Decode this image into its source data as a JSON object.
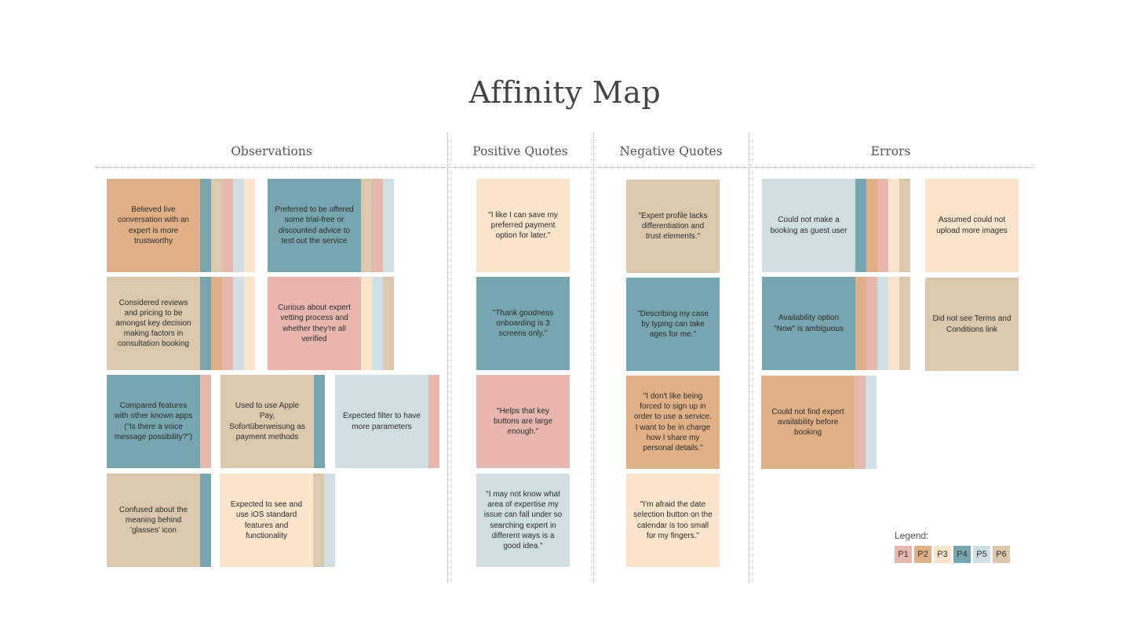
{
  "title": "Affinity Map",
  "colors": {
    "P1": "#e8b7ae",
    "P2": "#e0b188",
    "P3": "#fbe5cc",
    "P4": "#77a5b0",
    "P5": "#d0dfe4",
    "P6": "#dcc9ad"
  },
  "columns": [
    "Observations",
    "Positive Quotes",
    "Negative Quotes",
    "Errors"
  ],
  "notes": [
    {
      "text": "Believed live conversation with an expert is more trustworthy",
      "color": "P2",
      "strips": [
        "P4",
        "P6",
        "P1",
        "P5",
        "P3"
      ]
    },
    {
      "text": "Preferred to be offered some trial-free or discounted advice to test out the service",
      "color": "P4",
      "strips": [
        "P6",
        "P1",
        "P5"
      ]
    },
    {
      "text": "Considered reviews and pricing to be amongst key decision making factors in consultation booking",
      "color": "P6",
      "strips": [
        "P4",
        "P2",
        "P1",
        "P5",
        "P3"
      ]
    },
    {
      "text": "Curious about expert vetting process and whether they're all verified",
      "color": "P1",
      "strips": [
        "P3",
        "P5",
        "P6"
      ]
    },
    {
      "text": "Compared features with other known apps (\"Is there a voice message possibility?\")",
      "color": "P4",
      "strips": [
        "P1"
      ]
    },
    {
      "text": "Used to use Apple Pay, Sofortüberweisung as payment methods",
      "color": "P6",
      "strips": [
        "P4"
      ]
    },
    {
      "text": "Expected filter to have more parameters",
      "color": "P5",
      "strips": [
        "P1"
      ]
    },
    {
      "text": "Confused about the meaning behind 'glasses' icon",
      "color": "P6",
      "strips": [
        "P4"
      ]
    },
    {
      "text": "Expected to see and use iOS standard features and functionality",
      "color": "P3",
      "strips": [
        "P6",
        "P5"
      ]
    },
    {
      "text": "\"I like I can save my preferred payment option for later.\"",
      "color": "P3",
      "strips": []
    },
    {
      "text": "\"Thank goodness onboarding is 3 screens only.\"",
      "color": "P4",
      "strips": []
    },
    {
      "text": "\"Helps that key buttons are large enough.\"",
      "color": "P1",
      "strips": []
    },
    {
      "text": "\"I may not know what area of expertise my issue can fall under so searching expert in different ways is a good idea.\"",
      "color": "P5",
      "strips": []
    },
    {
      "text": "\"Expert profile lacks differentiation and trust elements.\"",
      "color": "P6",
      "strips": []
    },
    {
      "text": "\"Describing my case by typing can take ages for me.\"",
      "color": "P4",
      "strips": []
    },
    {
      "text": "\"I don't like being forced to sign up in order to use a service. I want to be in charge how I share my personal details.\"",
      "color": "P2",
      "strips": []
    },
    {
      "text": "\"I'm afraid the date selection button on the calendar is too small for my fingers.\"",
      "color": "P3",
      "strips": []
    },
    {
      "text": "Could not make a booking as guest user",
      "color": "P5",
      "strips": [
        "P4",
        "P2",
        "P1",
        "P3",
        "P6"
      ]
    },
    {
      "text": "Assumed could not upload more images",
      "color": "P3",
      "strips": []
    },
    {
      "text": "Availability option \"Now\" is ambiguous",
      "color": "P4",
      "strips": [
        "P2",
        "P1",
        "P5",
        "P3",
        "P6"
      ]
    },
    {
      "text": "Did not see Terms and Conditions link",
      "color": "P6",
      "strips": []
    },
    {
      "text": "Could not find expert availability before booking",
      "color": "P2",
      "strips": [
        "P1",
        "P5"
      ]
    }
  ],
  "legend": {
    "label": "Legend:",
    "items": [
      "P1",
      "P2",
      "P3",
      "P4",
      "P5",
      "P6"
    ]
  }
}
